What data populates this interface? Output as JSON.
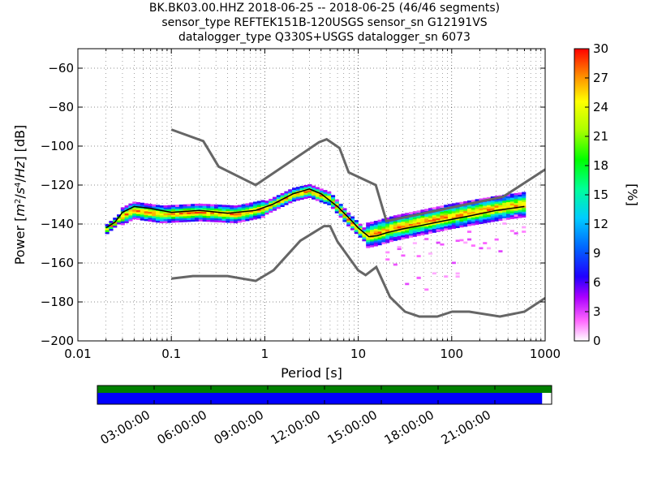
{
  "chart_data": {
    "type": "heatmap",
    "title_lines": [
      "BK.BK03.00.HHZ   2018-06-25 -- 2018-06-25  (46/46 segments)",
      "sensor_type REFTEK151B-120USGS sensor_sn G12191VS",
      "datalogger_type Q330S+USGS datalogger_sn 6073"
    ],
    "xlabel": "Period [s]",
    "ylabel": "Power [m²/s⁴/Hz] [dB]",
    "xscale": "log",
    "xlim": [
      0.01,
      1000
    ],
    "ylim": [
      -200,
      -50
    ],
    "x_ticks": [
      0.01,
      0.1,
      1,
      10,
      100,
      1000
    ],
    "x_tick_labels": [
      "0.01",
      "0.1",
      "1",
      "10",
      "100",
      "1000"
    ],
    "y_ticks": [
      -200,
      -180,
      -160,
      -140,
      -120,
      -100,
      -80,
      -60
    ],
    "y_tick_labels": [
      "−200",
      "−180",
      "−160",
      "−140",
      "−120",
      "−100",
      "−80",
      "−60"
    ],
    "grid": "dotted",
    "colorbar": {
      "label": "[%]",
      "range": [
        0,
        30
      ],
      "ticks": [
        0,
        3,
        6,
        9,
        12,
        15,
        18,
        21,
        24,
        27,
        30
      ],
      "tick_labels": [
        "0",
        "3",
        "6",
        "9",
        "12",
        "15",
        "18",
        "21",
        "24",
        "27",
        "30"
      ]
    },
    "noise_model_high": {
      "x": [
        0.1,
        0.22,
        0.32,
        0.8,
        3.8,
        4.6,
        6.3,
        7.9,
        15.4,
        20,
        354.8,
        1000
      ],
      "y": [
        -91.5,
        -97.4,
        -110.5,
        -120,
        -98,
        -96.5,
        -101,
        -113.5,
        -120,
        -138.5,
        -126,
        -112
      ]
    },
    "noise_model_low": {
      "x": [
        0.1,
        0.17,
        0.4,
        0.8,
        1.24,
        2.4,
        4.3,
        5,
        6,
        10,
        12,
        15.6,
        21.9,
        31.6,
        45,
        70,
        101,
        154,
        328,
        600,
        1000
      ],
      "y": [
        -168,
        -166.7,
        -166.7,
        -169.2,
        -163.7,
        -148.6,
        -141.1,
        -141.1,
        -149,
        -163.8,
        -166.2,
        -162.1,
        -177.5,
        -185,
        -187.5,
        -187.5,
        -185,
        -185,
        -187.5,
        -185,
        -178
      ]
    },
    "mean_psd": {
      "x": [
        0.02,
        0.025,
        0.03,
        0.04,
        0.06,
        0.1,
        0.2,
        0.4,
        0.8,
        1.2,
        2,
        3,
        4,
        6,
        8,
        10,
        13,
        16,
        20,
        30,
        50,
        80,
        150,
        300,
        600
      ],
      "y": [
        -142,
        -139,
        -134,
        -131,
        -132,
        -134,
        -133,
        -134.5,
        -133,
        -130,
        -124.5,
        -122,
        -124.5,
        -131,
        -137,
        -142,
        -146.5,
        -146,
        -144.5,
        -142.5,
        -140.5,
        -138.5,
        -136,
        -133,
        -131
      ]
    },
    "mode_psd": {
      "x": [
        0.02,
        0.03,
        0.04,
        0.08,
        0.2,
        0.5,
        1,
        2,
        3,
        5,
        8,
        12,
        15,
        25,
        50,
        100,
        300,
        600
      ],
      "y": [
        -143,
        -136,
        -133,
        -135,
        -134,
        -135,
        -132,
        -125,
        -123,
        -127,
        -138,
        -146,
        -145,
        -142,
        -139,
        -136,
        -132,
        -130
      ]
    },
    "coverage": {
      "time_ticks": [
        "03:00:00",
        "06:00:00",
        "09:00:00",
        "12:00:00",
        "15:00:00",
        "18:00:00",
        "21:00:00"
      ],
      "time_tick_hours": [
        3,
        6,
        9,
        12,
        15,
        18,
        21
      ],
      "hour_range": [
        0,
        24
      ],
      "data_coverage_fraction": 0.979,
      "colors": {
        "available": "#008000",
        "used": "#0000ff"
      }
    }
  }
}
